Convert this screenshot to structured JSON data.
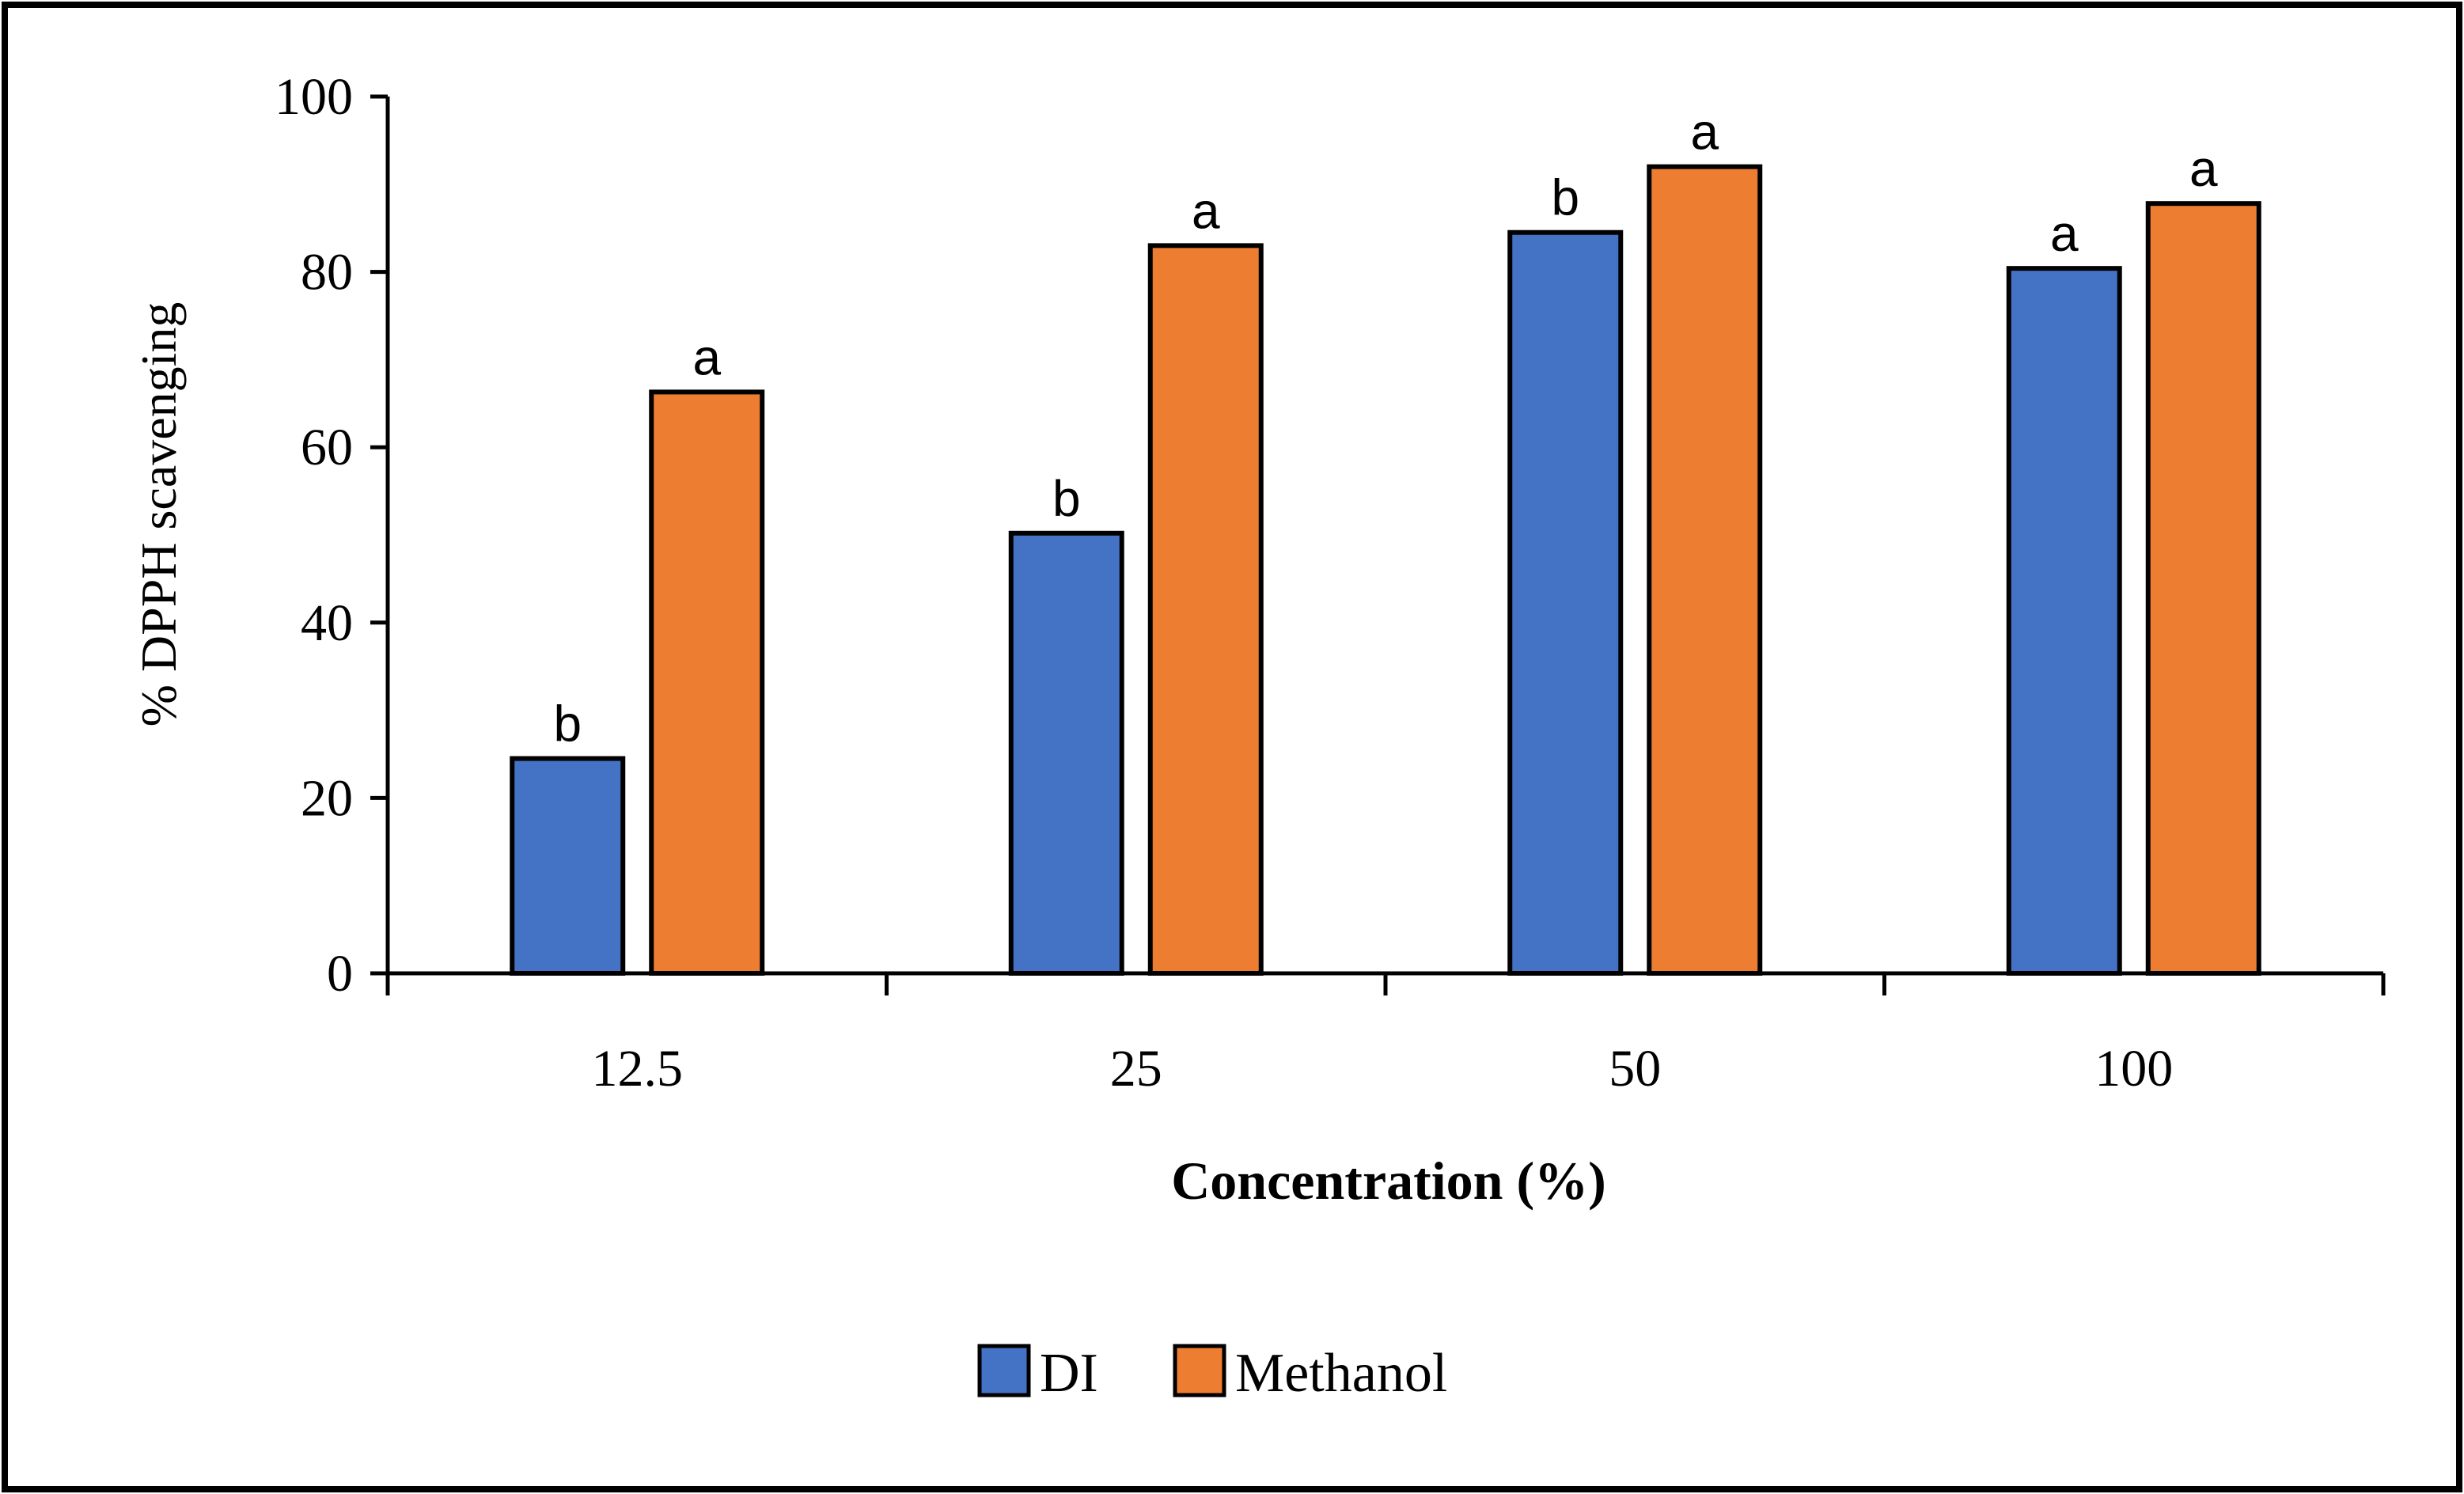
{
  "chart_data": {
    "type": "bar",
    "title": "",
    "xlabel": "Concentration (%)",
    "ylabel": "% DPPH scavenging",
    "categories": [
      "12.5",
      "25",
      "50",
      "100"
    ],
    "ylim": [
      0,
      100
    ],
    "yticks": [
      0,
      20,
      40,
      60,
      80,
      100
    ],
    "ytick_labels": [
      "0",
      "20",
      "40",
      "60",
      "80",
      "100"
    ],
    "grid": false,
    "legend_position": "bottom-center",
    "series": [
      {
        "name": "DI",
        "color": "#4472c4",
        "values": [
          24.5,
          50.2,
          84.5,
          80.4
        ],
        "labels": [
          "b",
          "b",
          "b",
          "a"
        ]
      },
      {
        "name": "Methanol",
        "color": "#ed7d31",
        "values": [
          66.3,
          83.0,
          92.0,
          87.8
        ],
        "labels": [
          "a",
          "a",
          "a",
          "a"
        ]
      }
    ]
  }
}
